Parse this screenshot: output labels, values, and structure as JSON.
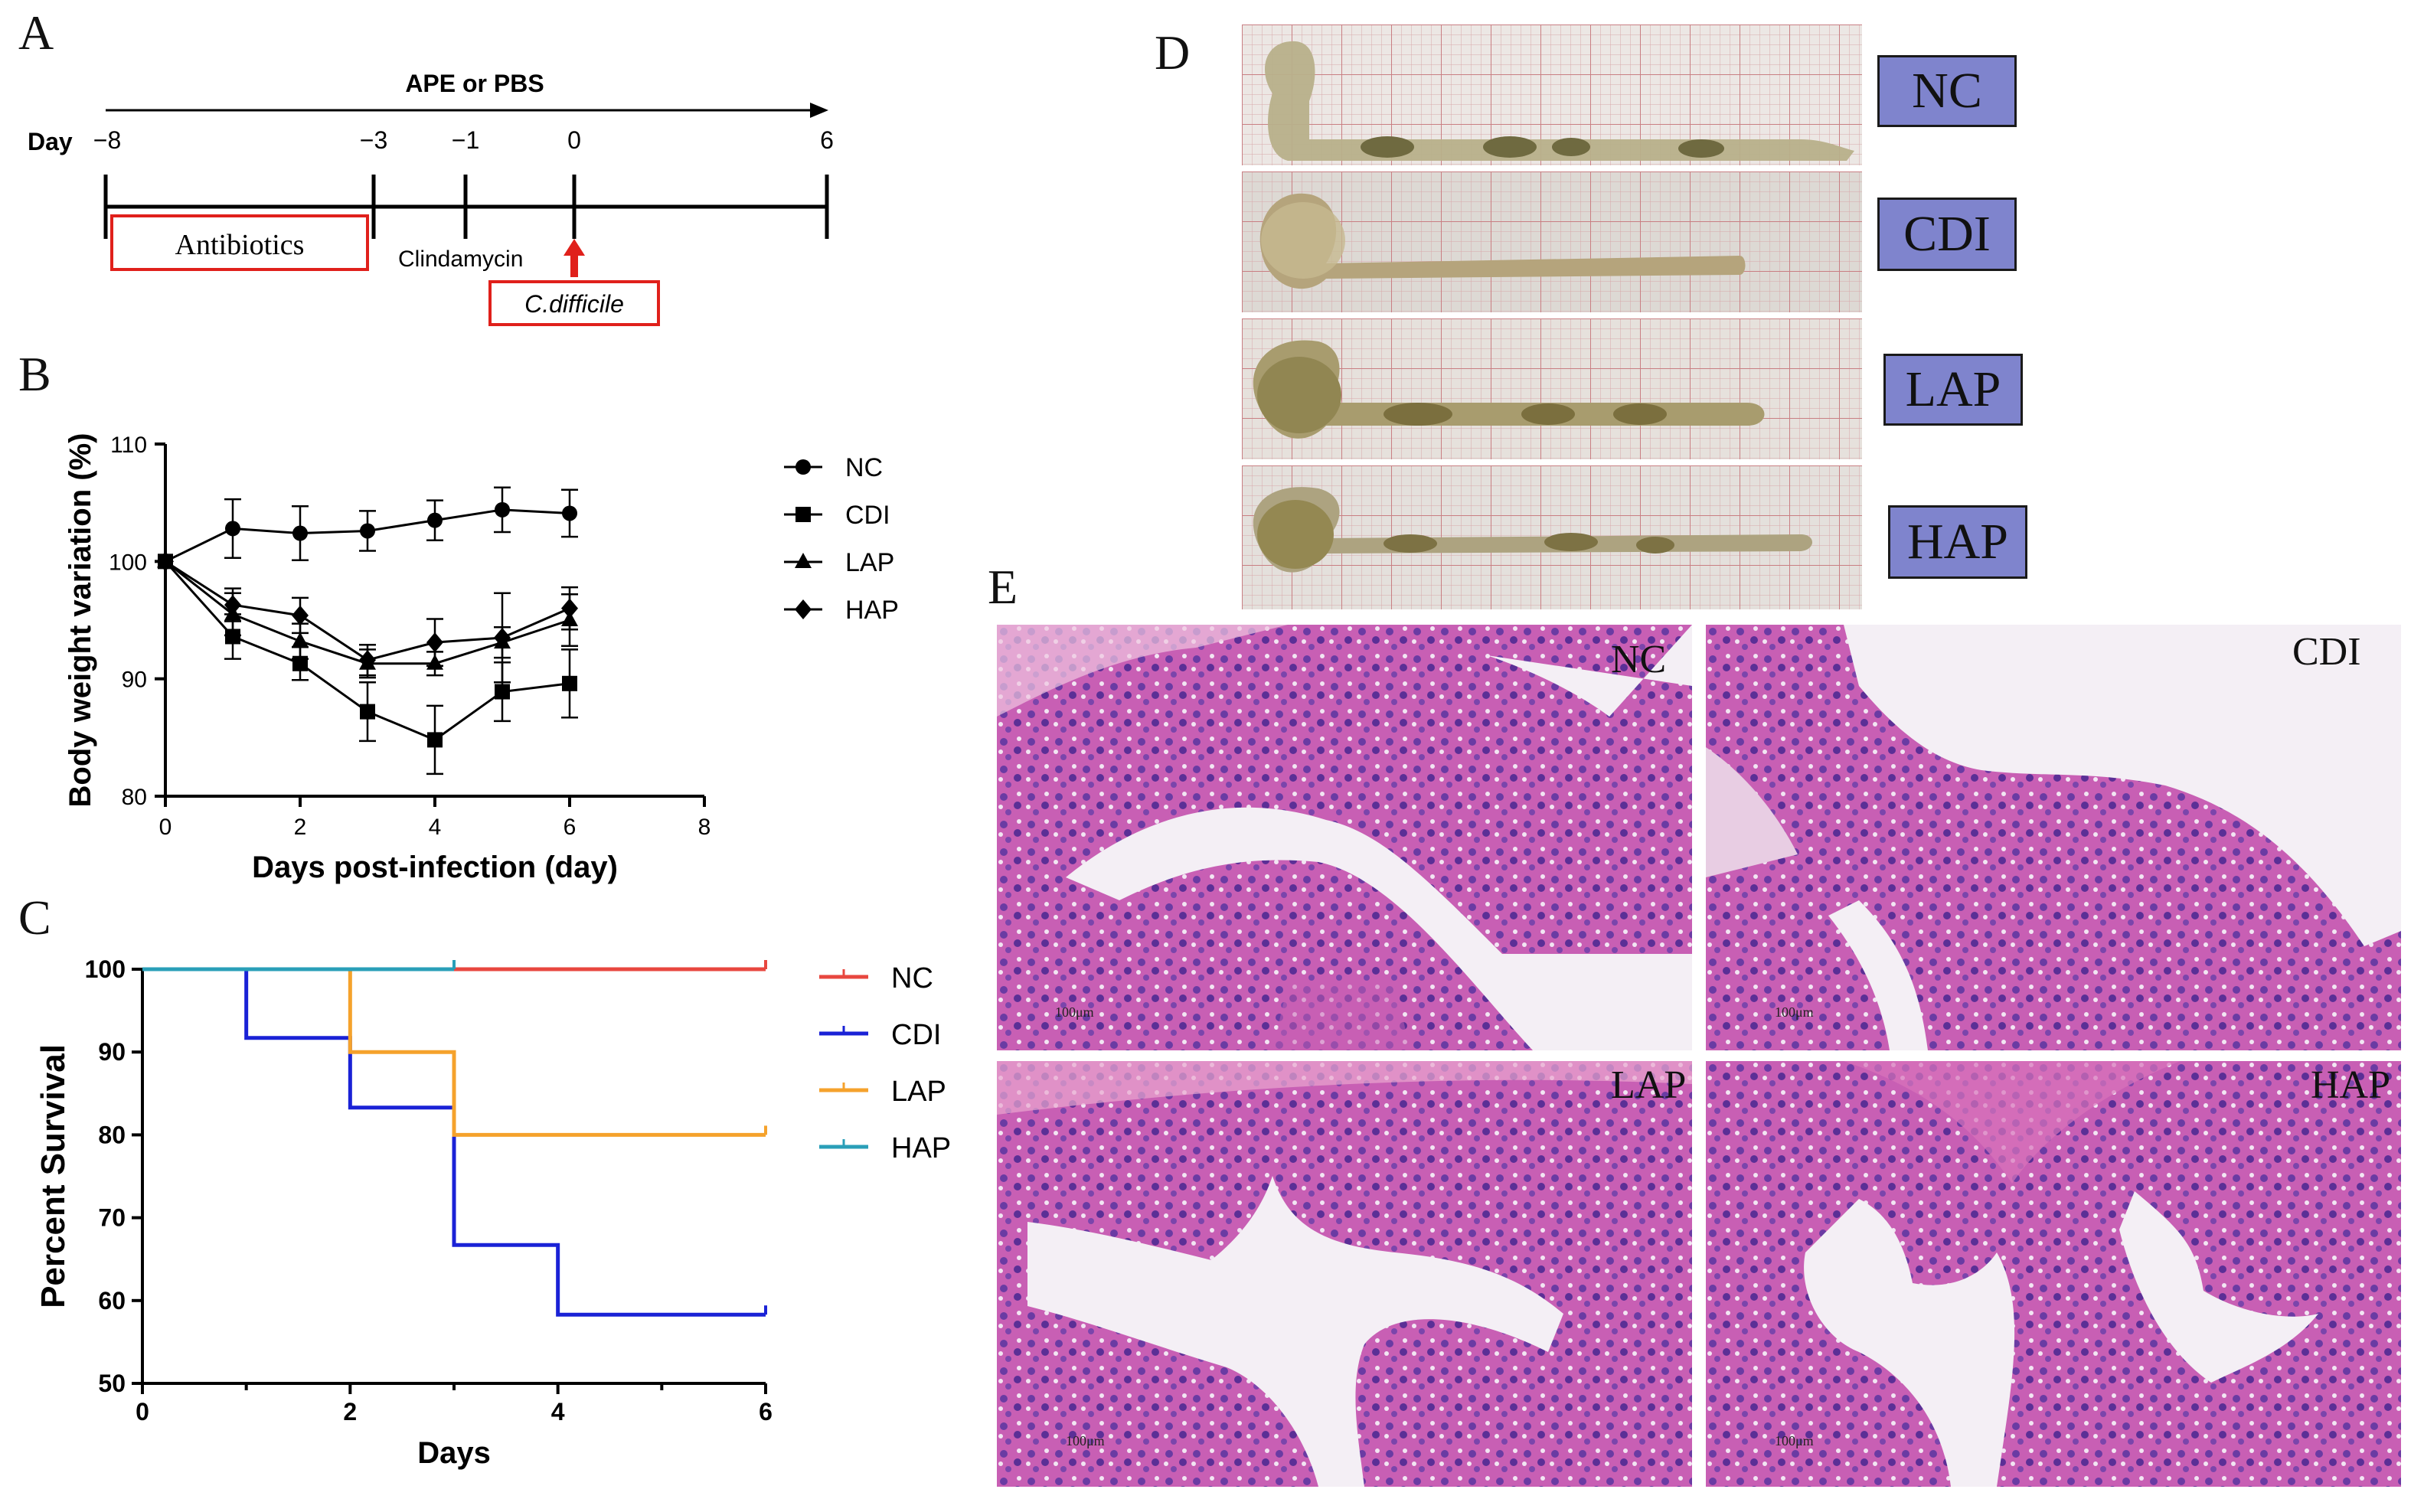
{
  "panels": {
    "A": {
      "letter": "A",
      "top_label": "APE or PBS",
      "day_label": "Day",
      "ticks": [
        "−8",
        "−3",
        "−1",
        "0",
        "6"
      ],
      "antibiotics": "Antibiotics",
      "clindamycin": "Clindamycin",
      "cdifficile": "C.difficile"
    },
    "B": {
      "letter": "B"
    },
    "C": {
      "letter": "C"
    },
    "D": {
      "letter": "D",
      "groups": [
        "NC",
        "CDI",
        "LAP",
        "HAP"
      ]
    },
    "E": {
      "letter": "E",
      "groups": [
        "NC",
        "CDI",
        "LAP",
        "HAP"
      ],
      "scale_bar": "100μm"
    }
  },
  "colors": {
    "NC_survival": "#e8473f",
    "CDI_survival": "#1a22d6",
    "LAP_survival": "#f5a22c",
    "HAP_survival": "#2a9fb8",
    "group_box": "#7f84cd",
    "annotation_red": "#e0201b"
  },
  "chart_data": [
    {
      "type": "line",
      "panel": "B",
      "xlabel": "Days post-infection (day)",
      "ylabel": "Body weight variation (%)",
      "xlim": [
        0,
        8
      ],
      "ylim": [
        80,
        110
      ],
      "xticks": [
        0,
        2,
        4,
        6,
        8
      ],
      "yticks": [
        80,
        90,
        100,
        110
      ],
      "legend_position": "right",
      "grid": false,
      "series": [
        {
          "name": "NC",
          "marker": "circle",
          "x": [
            0,
            1,
            2,
            3,
            4,
            5,
            6
          ],
          "y": [
            100,
            102.8,
            102.4,
            102.6,
            103.5,
            104.4,
            104.1
          ],
          "err": [
            0,
            2.5,
            2.3,
            1.7,
            1.7,
            1.9,
            2.0
          ]
        },
        {
          "name": "CDI",
          "marker": "square",
          "x": [
            0,
            1,
            2,
            3,
            4,
            5,
            6
          ],
          "y": [
            100,
            93.6,
            91.3,
            87.2,
            84.8,
            88.9,
            89.6
          ],
          "err": [
            0,
            1.9,
            1.4,
            2.5,
            2.9,
            2.5,
            2.9
          ]
        },
        {
          "name": "LAP",
          "marker": "triangle",
          "x": [
            0,
            1,
            2,
            3,
            4,
            5,
            6
          ],
          "y": [
            100,
            95.5,
            93.2,
            91.3,
            91.3,
            93.1,
            95.0
          ],
          "err": [
            0,
            1.8,
            1.5,
            1.2,
            1.0,
            1.3,
            2.2
          ]
        },
        {
          "name": "HAP",
          "marker": "diamond",
          "x": [
            0,
            1,
            2,
            3,
            4,
            5,
            6
          ],
          "y": [
            100,
            96.3,
            95.4,
            91.6,
            93.1,
            93.5,
            96.0
          ],
          "err": [
            0,
            1.4,
            1.5,
            1.3,
            2.0,
            3.8,
            1.8
          ]
        }
      ]
    },
    {
      "type": "line",
      "panel": "C",
      "xlabel": "Days",
      "ylabel": "Percent Survival",
      "xlim": [
        0,
        6
      ],
      "ylim": [
        50,
        100
      ],
      "xticks": [
        0,
        2,
        4,
        6
      ],
      "yticks": [
        50,
        60,
        70,
        80,
        90,
        100
      ],
      "legend_position": "right",
      "grid": false,
      "step": true,
      "series": [
        {
          "name": "NC",
          "color": "#e8473f",
          "x": [
            0,
            6
          ],
          "y": [
            100,
            100
          ]
        },
        {
          "name": "CDI",
          "color": "#1a22d6",
          "x": [
            0,
            1,
            2,
            3,
            4,
            6
          ],
          "y": [
            100,
            91.7,
            83.3,
            66.7,
            58.3,
            58.3
          ]
        },
        {
          "name": "LAP",
          "color": "#f5a22c",
          "x": [
            0,
            2,
            3,
            6
          ],
          "y": [
            100,
            90,
            80,
            80
          ]
        },
        {
          "name": "HAP",
          "color": "#2a9fb8",
          "x": [
            0,
            3
          ],
          "y": [
            100,
            100
          ]
        }
      ]
    }
  ]
}
